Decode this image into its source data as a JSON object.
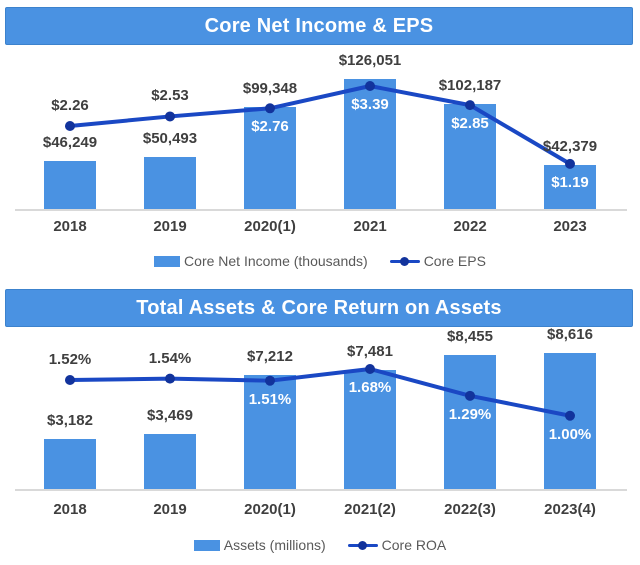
{
  "colors": {
    "bar_blue": "#4a92e2",
    "title_border": "#3c82cd",
    "line_blue": "#1a48c4",
    "marker_blue": "#12339c",
    "label_dark": "#3f3f3f",
    "label_white": "#ffffff",
    "legend_text": "#595959",
    "axis_line": "#d9d9d9"
  },
  "chart_data": [
    {
      "type": "bar",
      "title": "Core Net Income & EPS",
      "categories": [
        "2018",
        "2019",
        "2020(1)",
        "2021",
        "2022",
        "2023"
      ],
      "series": [
        {
          "name": "Core Net Income (thousands)",
          "type": "bar",
          "values": [
            46249,
            50493,
            99348,
            126051,
            102187,
            42379
          ],
          "labels": [
            "$46,249",
            "$50,493",
            "$99,348",
            "$126,051",
            "$102,187",
            "$42,379"
          ]
        },
        {
          "name": "Core EPS",
          "type": "line",
          "values": [
            2.26,
            2.53,
            2.76,
            3.39,
            2.85,
            1.19
          ],
          "labels": [
            "$2.26",
            "$2.53",
            "$2.76",
            "$3.39",
            "$2.85",
            "$1.19"
          ],
          "label_inside": [
            false,
            false,
            true,
            true,
            true,
            true
          ]
        }
      ],
      "legend_position": "bottom",
      "grid": false,
      "ylim": [
        0,
        135000
      ]
    },
    {
      "type": "bar",
      "title": "Total Assets & Core Return on Assets",
      "categories": [
        "2018",
        "2019",
        "2020(1)",
        "2021(2)",
        "2022(3)",
        "2023(4)"
      ],
      "series": [
        {
          "name": "Assets (millions)",
          "type": "bar",
          "values": [
            3182,
            3469,
            7212,
            7481,
            8455,
            8616
          ],
          "labels": [
            "$3,182",
            "$3,469",
            "$7,212",
            "$7,481",
            "$8,455",
            "$8,616"
          ]
        },
        {
          "name": "Core ROA",
          "type": "line",
          "values": [
            1.52,
            1.54,
            1.51,
            1.68,
            1.29,
            1.0
          ],
          "labels": [
            "1.52%",
            "1.54%",
            "1.51%",
            "1.68%",
            "1.29%",
            "1.00%"
          ],
          "label_inside": [
            false,
            false,
            true,
            true,
            true,
            true
          ]
        }
      ],
      "legend_position": "bottom",
      "grid": false,
      "ylim": [
        0,
        9000
      ]
    }
  ]
}
